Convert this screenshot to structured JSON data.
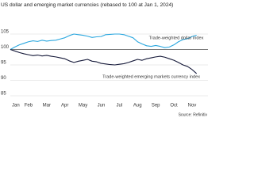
{
  "chart_data": {
    "type": "line",
    "title": "US dollar and emerging market currencies (rebased to 100 at Jan 1, 2024)",
    "source": "Source: Refinitiv",
    "categories": [
      "Jan",
      null,
      null,
      null,
      "Feb",
      null,
      null,
      null,
      "Mar",
      null,
      null,
      null,
      "Apr",
      null,
      null,
      null,
      "May",
      null,
      null,
      null,
      "Jun",
      null,
      null,
      null,
      "Jul",
      null,
      null,
      null,
      "Aug",
      null,
      null,
      null,
      "Sep",
      null,
      null,
      null,
      "Oct",
      null,
      null,
      null,
      "Nov",
      null
    ],
    "series": [
      {
        "name": "Trade-weighted dollar index",
        "color": "#2aa7df",
        "values": [
          100,
          100.8,
          101.5,
          102.0,
          102.5,
          102.8,
          102.6,
          103.0,
          102.7,
          102.9,
          103.0,
          103.4,
          103.8,
          104.5,
          105.0,
          104.8,
          104.6,
          104.3,
          103.9,
          104.1,
          104.2,
          104.8,
          104.9,
          105.0,
          105.0,
          104.8,
          104.3,
          103.8,
          102.5,
          101.8,
          101.2,
          101.0,
          101.3,
          101.0,
          100.6,
          100.8,
          101.5,
          102.5,
          103.2,
          103.5,
          104.2,
          104.6
        ]
      },
      {
        "name": "Trade-weighted emerging markets currency index",
        "color": "#161a3a",
        "values": [
          100,
          99.5,
          99.0,
          98.6,
          98.3,
          98.0,
          98.2,
          97.9,
          98.1,
          97.8,
          97.6,
          97.3,
          97.0,
          96.3,
          95.8,
          96.2,
          96.5,
          96.8,
          96.2,
          96.0,
          95.5,
          95.3,
          95.1,
          95.0,
          95.2,
          95.4,
          95.8,
          96.3,
          96.8,
          96.5,
          97.0,
          97.3,
          97.6,
          97.8,
          97.5,
          97.0,
          96.5,
          95.8,
          95.0,
          94.5,
          93.5,
          92.2
        ]
      }
    ],
    "ylim": [
      85,
      105
    ],
    "yticks": [
      85,
      90,
      95,
      100,
      105
    ],
    "grid": true,
    "baseline": 100
  }
}
